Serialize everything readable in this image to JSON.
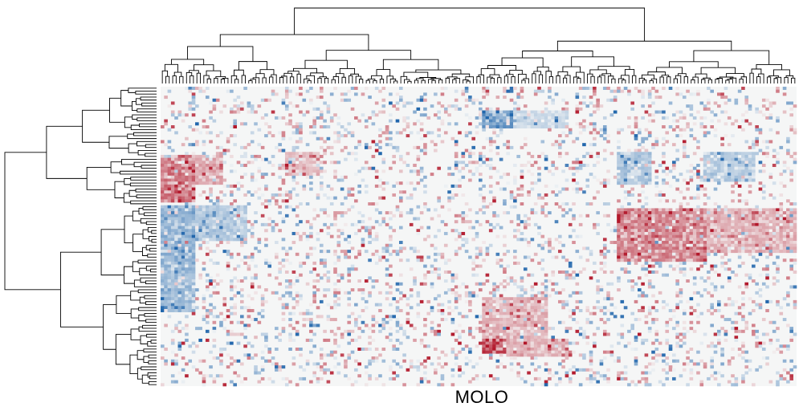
{
  "chart_data": {
    "type": "heatmap",
    "title": "",
    "xlabel": "MOLO",
    "ylabel": "",
    "n_cols": 184,
    "n_rows": 101,
    "color_scale": {
      "name": "RdBu_r",
      "negative": "#2166ac",
      "neutral": "#f5f6f6",
      "positive": "#b2182b",
      "vmin": -1,
      "vmax": 1
    },
    "row_dendrogram": true,
    "col_dendrogram": true,
    "blocks": [
      {
        "rows": [
          23,
          39
        ],
        "cols": [
          0,
          10
        ],
        "value": 0.55
      },
      {
        "rows": [
          23,
          33
        ],
        "cols": [
          10,
          18
        ],
        "value": 0.35
      },
      {
        "rows": [
          22,
          30
        ],
        "cols": [
          36,
          46
        ],
        "value": 0.25
      },
      {
        "rows": [
          40,
          62
        ],
        "cols": [
          0,
          10
        ],
        "value": -0.45
      },
      {
        "rows": [
          40,
          52
        ],
        "cols": [
          10,
          25
        ],
        "value": -0.3
      },
      {
        "rows": [
          62,
          76
        ],
        "cols": [
          0,
          10
        ],
        "value": -0.4
      },
      {
        "rows": [
          8,
          14
        ],
        "cols": [
          93,
          102
        ],
        "value": -0.6
      },
      {
        "rows": [
          8,
          14
        ],
        "cols": [
          102,
          118
        ],
        "value": -0.2
      },
      {
        "rows": [
          22,
          33
        ],
        "cols": [
          132,
          142
        ],
        "value": -0.35
      },
      {
        "rows": [
          22,
          32
        ],
        "cols": [
          157,
          172
        ],
        "value": -0.3
      },
      {
        "rows": [
          41,
          59
        ],
        "cols": [
          132,
          158
        ],
        "value": 0.5
      },
      {
        "rows": [
          41,
          56
        ],
        "cols": [
          158,
          184
        ],
        "value": 0.3
      },
      {
        "rows": [
          71,
          86
        ],
        "cols": [
          93,
          112
        ],
        "value": 0.3
      },
      {
        "rows": [
          85,
          90
        ],
        "cols": [
          93,
          100
        ],
        "value": 0.75
      },
      {
        "rows": [
          85,
          91
        ],
        "cols": [
          100,
          118
        ],
        "value": 0.3
      }
    ],
    "noise": {
      "density": 0.22,
      "amplitude": 0.55,
      "seed": 7
    }
  }
}
